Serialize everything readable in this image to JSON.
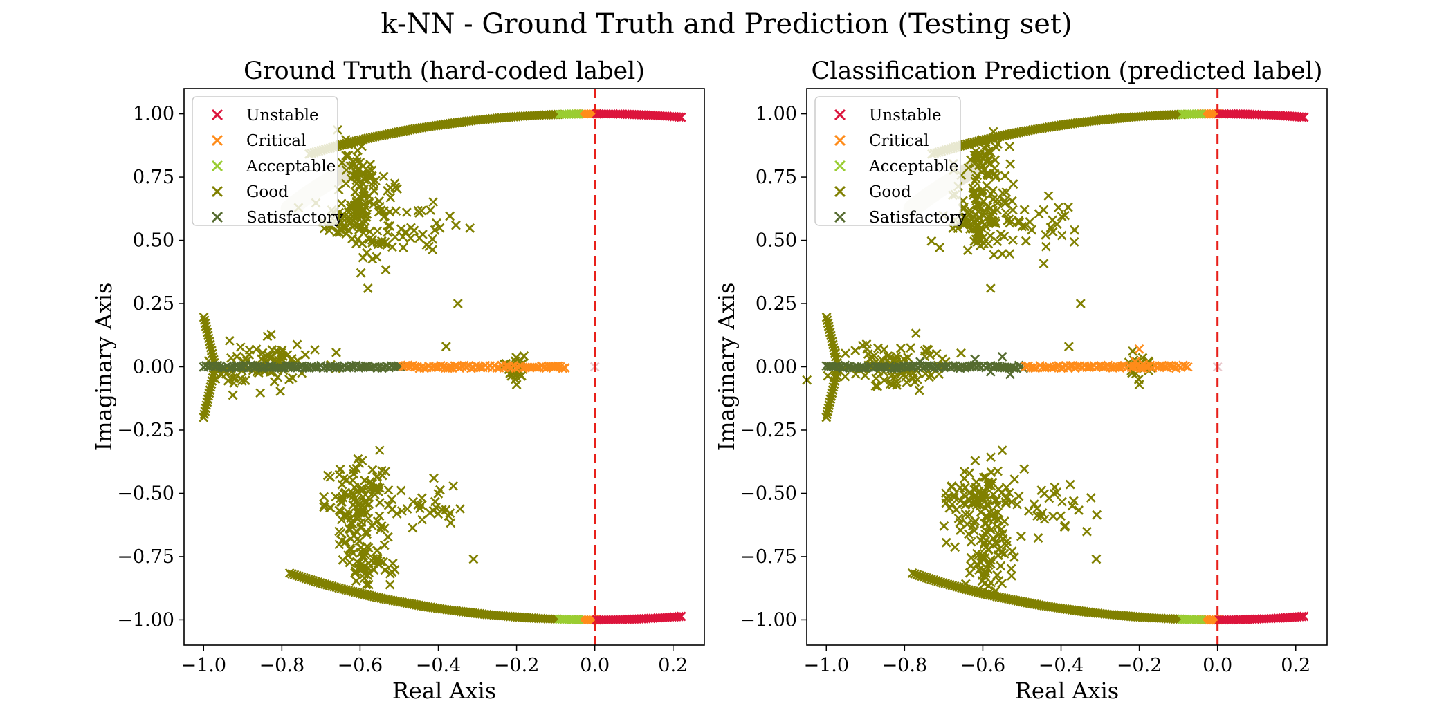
{
  "figure": {
    "title": "k-NN - Ground Truth and Prediction (Testing set)"
  },
  "colors": {
    "Unstable": "#dc143c",
    "Critical": "#ff8c1a",
    "Acceptable": "#9acd32",
    "Good": "#808000",
    "Satisfactory": "#556b2f",
    "threshold_line": "#e8201a",
    "faded_arc": "#e8e6d6"
  },
  "legend": {
    "placement": "upper-left",
    "entries": [
      "Unstable",
      "Critical",
      "Acceptable",
      "Good",
      "Satisfactory"
    ]
  },
  "chart_data": [
    {
      "type": "scatter",
      "title": "Ground Truth (hard-coded label)",
      "xlabel": "Real Axis",
      "ylabel": "Imaginary Axis",
      "xlim": [
        -1.05,
        0.28
      ],
      "ylim": [
        -1.1,
        1.1
      ],
      "xticks": [
        "−1.0",
        "−0.8",
        "−0.6",
        "−0.4",
        "−0.2",
        "0.0",
        "0.2"
      ],
      "yticks": [
        "−1.00",
        "−0.75",
        "−0.50",
        "−0.25",
        "0.00",
        "0.25",
        "0.50",
        "0.75",
        "1.00"
      ],
      "threshold_x": 0.0,
      "marker": "x",
      "series": [
        {
          "name": "Unstable",
          "segments": [
            {
              "kind": "arc_upper",
              "x": [
                0.005,
                0.225
              ]
            },
            {
              "kind": "arc_lower",
              "x": [
                0.005,
                0.225
              ]
            }
          ]
        },
        {
          "name": "Critical",
          "segments": [
            {
              "kind": "arc_upper",
              "x": [
                -0.04,
                0.005
              ]
            },
            {
              "kind": "arc_lower",
              "x": [
                -0.04,
                0.005
              ]
            },
            {
              "kind": "real_axis",
              "x": [
                -0.49,
                -0.07
              ]
            }
          ]
        },
        {
          "name": "Acceptable",
          "segments": [
            {
              "kind": "arc_upper",
              "x": [
                -0.09,
                -0.04
              ]
            },
            {
              "kind": "arc_lower",
              "x": [
                -0.09,
                -0.04
              ]
            }
          ]
        },
        {
          "name": "Good",
          "segments": [
            {
              "kind": "arc_upper",
              "x": [
                -0.73,
                -0.09
              ]
            },
            {
              "kind": "arc_lower",
              "x": [
                -0.78,
                -0.09
              ]
            },
            {
              "kind": "edge_vertical",
              "x": [
                -1.0,
                -0.97
              ],
              "y": [
                -0.2,
                0.2
              ]
            },
            {
              "kind": "cluster",
              "cx": -0.6,
              "cy": 0.6,
              "sx": 0.045,
              "sy": 0.08,
              "n": 120
            },
            {
              "kind": "cluster",
              "cx": -0.6,
              "cy": -0.55,
              "sx": 0.045,
              "sy": 0.08,
              "n": 120
            },
            {
              "kind": "cluster",
              "cx": -0.58,
              "cy": -0.78,
              "sx": 0.03,
              "sy": 0.05,
              "n": 50
            },
            {
              "kind": "cluster",
              "cx": -0.6,
              "cy": 0.8,
              "sx": 0.03,
              "sy": 0.05,
              "n": 45
            },
            {
              "kind": "cluster",
              "cx": -0.43,
              "cy": 0.55,
              "sx": 0.04,
              "sy": 0.05,
              "n": 25
            },
            {
              "kind": "cluster",
              "cx": -0.43,
              "cy": -0.55,
              "sx": 0.04,
              "sy": 0.05,
              "n": 25
            },
            {
              "kind": "cluster",
              "cx": -0.85,
              "cy": 0.0,
              "sx": 0.07,
              "sy": 0.05,
              "n": 90
            },
            {
              "kind": "cluster",
              "cx": -0.2,
              "cy": 0.0,
              "sx": 0.015,
              "sy": 0.025,
              "n": 25
            },
            {
              "kind": "points",
              "x": [
                -0.31,
                -0.35,
                -0.58,
                -0.55,
                -0.38,
                -0.2
              ],
              "y": [
                -0.76,
                0.25,
                0.31,
                -0.33,
                0.08,
                -0.07
              ]
            }
          ]
        },
        {
          "name": "Satisfactory",
          "segments": [
            {
              "kind": "real_axis",
              "x": [
                -1.0,
                -0.49
              ]
            }
          ]
        }
      ]
    },
    {
      "type": "scatter",
      "title": "Classification Prediction (predicted label)",
      "xlabel": "Real Axis",
      "ylabel": "Imaginary Axis",
      "xlim": [
        -1.05,
        0.28
      ],
      "ylim": [
        -1.1,
        1.1
      ],
      "xticks": [
        "−1.0",
        "−0.8",
        "−0.6",
        "−0.4",
        "−0.2",
        "0.0",
        "0.2"
      ],
      "yticks": [
        "−1.00",
        "−0.75",
        "−0.50",
        "−0.25",
        "0.00",
        "0.25",
        "0.50",
        "0.75",
        "1.00"
      ],
      "threshold_x": 0.0,
      "marker": "x",
      "series": [
        {
          "name": "Unstable",
          "segments": [
            {
              "kind": "arc_upper",
              "x": [
                0.005,
                0.225
              ]
            },
            {
              "kind": "arc_lower",
              "x": [
                0.005,
                0.225
              ]
            }
          ]
        },
        {
          "name": "Critical",
          "segments": [
            {
              "kind": "arc_upper",
              "x": [
                -0.04,
                0.005
              ]
            },
            {
              "kind": "arc_lower",
              "x": [
                -0.04,
                0.005
              ]
            },
            {
              "kind": "real_axis",
              "x": [
                -0.49,
                -0.07
              ]
            },
            {
              "kind": "points",
              "x": [
                -0.2,
                -0.21,
                -0.19
              ],
              "y": [
                0.07,
                0.02,
                0.01
              ]
            }
          ]
        },
        {
          "name": "Acceptable",
          "segments": [
            {
              "kind": "arc_upper",
              "x": [
                -0.09,
                -0.04
              ]
            },
            {
              "kind": "arc_lower",
              "x": [
                -0.09,
                -0.04
              ]
            }
          ]
        },
        {
          "name": "Good",
          "segments": [
            {
              "kind": "arc_upper",
              "x": [
                -0.73,
                -0.09
              ]
            },
            {
              "kind": "arc_lower",
              "x": [
                -0.78,
                -0.09
              ]
            },
            {
              "kind": "edge_vertical",
              "x": [
                -1.0,
                -0.97
              ],
              "y": [
                -0.2,
                0.2
              ]
            },
            {
              "kind": "cluster",
              "cx": -0.6,
              "cy": 0.6,
              "sx": 0.045,
              "sy": 0.08,
              "n": 120
            },
            {
              "kind": "cluster",
              "cx": -0.6,
              "cy": -0.55,
              "sx": 0.045,
              "sy": 0.08,
              "n": 120
            },
            {
              "kind": "cluster",
              "cx": -0.58,
              "cy": -0.78,
              "sx": 0.03,
              "sy": 0.05,
              "n": 50
            },
            {
              "kind": "cluster",
              "cx": -0.6,
              "cy": 0.8,
              "sx": 0.03,
              "sy": 0.05,
              "n": 45
            },
            {
              "kind": "cluster",
              "cx": -0.43,
              "cy": 0.55,
              "sx": 0.04,
              "sy": 0.05,
              "n": 25
            },
            {
              "kind": "cluster",
              "cx": -0.43,
              "cy": -0.55,
              "sx": 0.04,
              "sy": 0.05,
              "n": 25
            },
            {
              "kind": "cluster",
              "cx": -0.85,
              "cy": 0.0,
              "sx": 0.07,
              "sy": 0.05,
              "n": 90
            },
            {
              "kind": "cluster",
              "cx": -0.2,
              "cy": 0.0,
              "sx": 0.015,
              "sy": 0.025,
              "n": 20
            },
            {
              "kind": "points",
              "x": [
                -0.31,
                -0.35,
                -0.58,
                -0.55,
                -0.38,
                -0.2
              ],
              "y": [
                -0.76,
                0.25,
                0.31,
                -0.33,
                0.08,
                -0.07
              ]
            }
          ]
        },
        {
          "name": "Satisfactory",
          "segments": [
            {
              "kind": "real_axis",
              "x": [
                -1.0,
                -0.49
              ]
            },
            {
              "kind": "points",
              "x": [
                -0.76,
                -0.62,
                -0.58,
                -0.55,
                -0.53
              ],
              "y": [
                0.02,
                0.03,
                -0.02,
                0.04,
                -0.03
              ]
            }
          ]
        }
      ]
    }
  ]
}
